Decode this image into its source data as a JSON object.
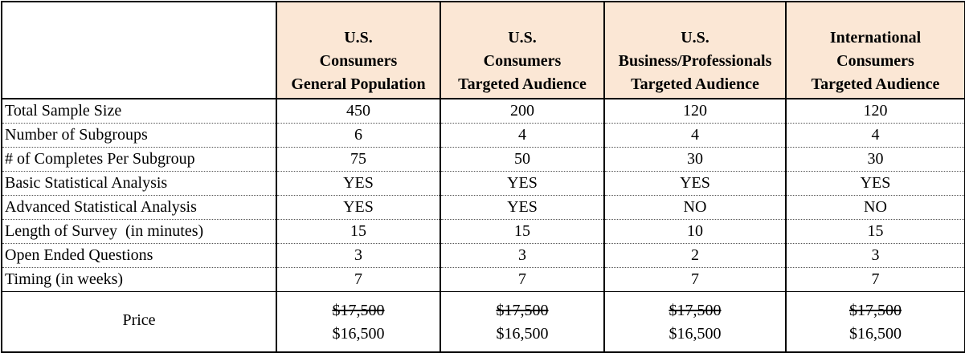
{
  "header": {
    "columns": [
      {
        "lines": [
          "U.S.",
          "Consumers",
          "General Population"
        ]
      },
      {
        "lines": [
          "U.S.",
          "Consumers",
          "Targeted Audience"
        ]
      },
      {
        "lines": [
          "U.S.",
          "Business/Professionals",
          "Targeted Audience"
        ]
      },
      {
        "lines": [
          "International",
          "Consumers",
          "Targeted Audience"
        ]
      }
    ]
  },
  "rows": [
    {
      "label": "Total Sample Size",
      "values": [
        "450",
        "200",
        "120",
        "120"
      ]
    },
    {
      "label": "Number of Subgroups",
      "values": [
        "6",
        "4",
        "4",
        "4"
      ]
    },
    {
      "label": "# of Completes Per Subgroup",
      "values": [
        "75",
        "50",
        "30",
        "30"
      ]
    },
    {
      "label": "Basic Statistical Analysis",
      "values": [
        "YES",
        "YES",
        "YES",
        "YES"
      ]
    },
    {
      "label": "Advanced Statistical Analysis",
      "values": [
        "YES",
        "YES",
        "NO",
        "NO"
      ]
    },
    {
      "label": "Length of Survey  (in minutes)",
      "values": [
        "15",
        "15",
        "10",
        "15"
      ]
    },
    {
      "label": "Open Ended Questions",
      "values": [
        "3",
        "3",
        "2",
        "3"
      ]
    },
    {
      "label": "Timing (in weeks)",
      "values": [
        "7",
        "7",
        "7",
        "7"
      ]
    }
  ],
  "price": {
    "label": "Price",
    "old": [
      "$17,500",
      "$17,500",
      "$17,500",
      "$17,500"
    ],
    "new": [
      "$16,500",
      "$16,500",
      "$16,500",
      "$16,500"
    ]
  },
  "colors": {
    "header_fill": "#fbe7d5",
    "border": "#000000"
  }
}
